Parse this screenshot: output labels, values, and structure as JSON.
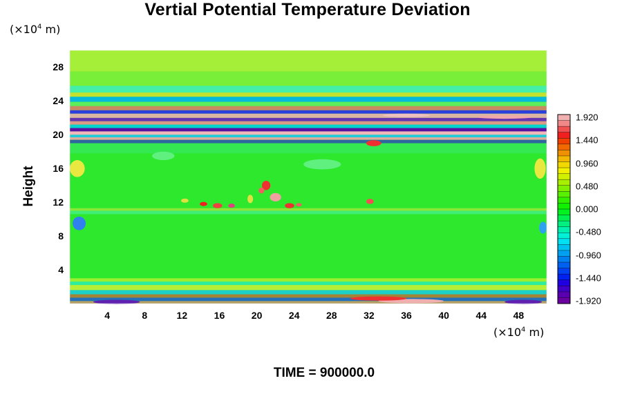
{
  "chart_data": {
    "type": "heatmap",
    "title": "Vertial Potential Temperature Deviation",
    "ylabel": "Height",
    "y_unit": "(×10⁴ m)",
    "x_unit": "(×10⁴ m)",
    "x_ticks": [
      "4",
      "8",
      "12",
      "16",
      "20",
      "24",
      "28",
      "32",
      "36",
      "40",
      "44",
      "48"
    ],
    "y_ticks": [
      "4",
      "8",
      "12",
      "16",
      "20",
      "24",
      "28"
    ],
    "xlim": [
      0,
      51
    ],
    "ylim": [
      0,
      30
    ],
    "colorbar": {
      "labels": [
        "1.920",
        "1.440",
        "0.960",
        "0.480",
        "0.000",
        "-0.480",
        "-0.960",
        "-1.440",
        "-1.920"
      ],
      "range": [
        -1.92,
        1.92
      ]
    },
    "footer": "TIME = 900000.0"
  }
}
